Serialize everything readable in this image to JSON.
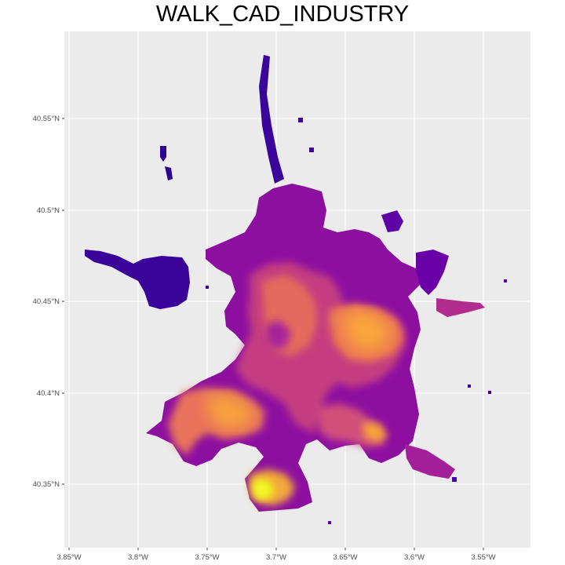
{
  "title": "WALK_CAD_INDUSTRY",
  "map": {
    "panel_background": "#ebebeb",
    "gridline_color": "#ffffff",
    "palette": "plasma",
    "palette_colors": [
      "#0d0887",
      "#5b02a3",
      "#9a179b",
      "#cb4679",
      "#eb7852",
      "#fbb32f",
      "#f0f921"
    ],
    "y_ticks": [
      "40.35°N",
      "40.4°N",
      "40.45°N",
      "40.5°N",
      "40.55°N"
    ],
    "x_ticks": [
      "3.85°W",
      "3.8°W",
      "3.75°W",
      "3.7°W",
      "3.65°W",
      "3.6°W",
      "3.55°W"
    ],
    "lat_range": [
      40.318,
      40.585
    ],
    "lon_range": [
      -3.855,
      -3.52
    ]
  }
}
